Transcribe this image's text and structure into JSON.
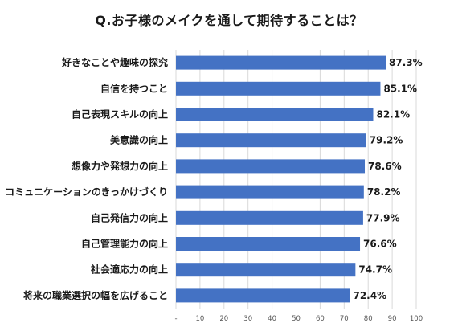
{
  "title": "Q.お子様のメイクを通して期待することは？",
  "chart_data": {
    "type": "bar",
    "orientation": "horizontal",
    "title": "Q.お子様のメイクを通して期待することは？",
    "categories": [
      "好きなことや趣味の探究",
      "自信を持つこと",
      "自己表現スキルの向上",
      "美意識の向上",
      "想像力や発想力の向上",
      "コミュニケーションのきっかけづくり",
      "自己発信力の向上",
      "自己管理能力の向上",
      "社会適応力の向上",
      "将来の職業選択の幅を広げること"
    ],
    "values": [
      87.3,
      85.1,
      82.1,
      79.2,
      78.6,
      78.2,
      77.9,
      76.6,
      74.7,
      72.4
    ],
    "value_labels": [
      "87.3%",
      "85.1%",
      "82.1%",
      "79.2%",
      "78.6%",
      "78.2%",
      "77.9%",
      "76.6%",
      "74.7%",
      "72.4%"
    ],
    "x_ticks": [
      "-",
      "10",
      "20",
      "30",
      "40",
      "50",
      "60",
      "70",
      "80",
      "90",
      "100"
    ],
    "xlim": [
      0,
      100
    ],
    "bar_color": "#4472c4",
    "grid": true,
    "legend": "none"
  }
}
